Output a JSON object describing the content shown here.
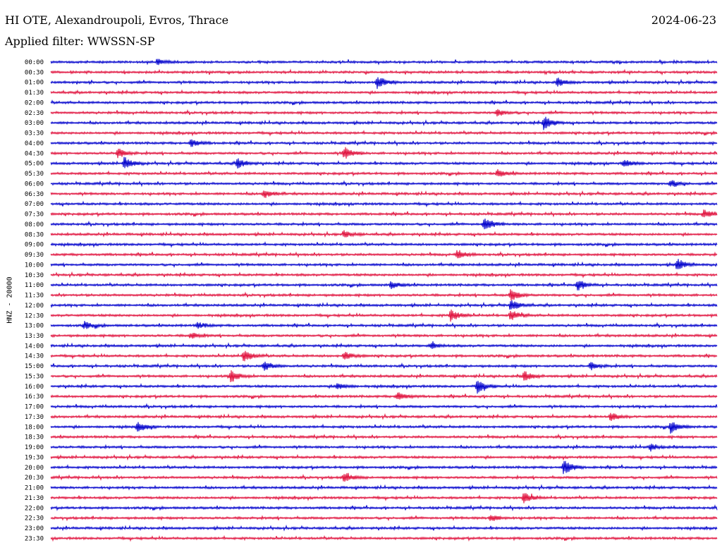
{
  "header": {
    "station": "HI OTE, Alexandroupoli, Evros, Thrace",
    "date": "2024-06-23",
    "filter": "Applied filter: WWSSN-SP"
  },
  "chart_data": {
    "type": "line",
    "chart_kind": "helicorder",
    "ylabel": "HNZ - 20000",
    "row_labels": [
      "00:00",
      "00:30",
      "01:00",
      "01:30",
      "02:00",
      "02:30",
      "03:00",
      "03:30",
      "04:00",
      "04:30",
      "05:00",
      "05:30",
      "06:00",
      "06:30",
      "07:00",
      "07:30",
      "08:00",
      "08:30",
      "09:00",
      "09:30",
      "10:00",
      "10:30",
      "11:00",
      "11:30",
      "12:00",
      "12:30",
      "13:00",
      "13:30",
      "14:00",
      "14:30",
      "15:00",
      "15:30",
      "16:00",
      "16:30",
      "17:00",
      "17:30",
      "18:00",
      "18:30",
      "19:00",
      "19:30",
      "20:00",
      "20:30",
      "21:00",
      "21:30",
      "22:00",
      "22:30",
      "23:00",
      "23:30"
    ],
    "colors": [
      "#0000cc",
      "#e0103c"
    ],
    "events": [
      {
        "row": 0,
        "pos": 0.16,
        "amp": 0.5
      },
      {
        "row": 2,
        "pos": 0.49,
        "amp": 1.0
      },
      {
        "row": 2,
        "pos": 0.76,
        "amp": 0.6
      },
      {
        "row": 5,
        "pos": 0.67,
        "amp": 0.5
      },
      {
        "row": 6,
        "pos": 0.74,
        "amp": 1.1
      },
      {
        "row": 8,
        "pos": 0.21,
        "amp": 0.6
      },
      {
        "row": 9,
        "pos": 0.1,
        "amp": 0.8
      },
      {
        "row": 9,
        "pos": 0.44,
        "amp": 1.0
      },
      {
        "row": 10,
        "pos": 0.11,
        "amp": 1.0
      },
      {
        "row": 10,
        "pos": 0.28,
        "amp": 0.8
      },
      {
        "row": 10,
        "pos": 0.86,
        "amp": 0.6
      },
      {
        "row": 11,
        "pos": 0.67,
        "amp": 0.6
      },
      {
        "row": 12,
        "pos": 0.93,
        "amp": 0.6
      },
      {
        "row": 13,
        "pos": 0.32,
        "amp": 0.7
      },
      {
        "row": 15,
        "pos": 0.98,
        "amp": 0.7
      },
      {
        "row": 16,
        "pos": 0.65,
        "amp": 1.2
      },
      {
        "row": 17,
        "pos": 0.44,
        "amp": 0.5
      },
      {
        "row": 19,
        "pos": 0.61,
        "amp": 0.7
      },
      {
        "row": 20,
        "pos": 0.94,
        "amp": 0.9
      },
      {
        "row": 22,
        "pos": 0.79,
        "amp": 0.9
      },
      {
        "row": 22,
        "pos": 0.51,
        "amp": 0.6
      },
      {
        "row": 23,
        "pos": 0.69,
        "amp": 1.0
      },
      {
        "row": 24,
        "pos": 0.69,
        "amp": 0.9
      },
      {
        "row": 25,
        "pos": 0.6,
        "amp": 1.0
      },
      {
        "row": 25,
        "pos": 0.69,
        "amp": 0.9
      },
      {
        "row": 26,
        "pos": 0.05,
        "amp": 0.6
      },
      {
        "row": 26,
        "pos": 0.22,
        "amp": 0.5
      },
      {
        "row": 27,
        "pos": 0.21,
        "amp": 0.5
      },
      {
        "row": 28,
        "pos": 0.57,
        "amp": 0.5
      },
      {
        "row": 29,
        "pos": 0.29,
        "amp": 1.0
      },
      {
        "row": 29,
        "pos": 0.44,
        "amp": 0.7
      },
      {
        "row": 30,
        "pos": 0.32,
        "amp": 0.8
      },
      {
        "row": 30,
        "pos": 0.81,
        "amp": 0.6
      },
      {
        "row": 31,
        "pos": 0.27,
        "amp": 1.0
      },
      {
        "row": 31,
        "pos": 0.71,
        "amp": 0.8
      },
      {
        "row": 32,
        "pos": 0.64,
        "amp": 1.1
      },
      {
        "row": 32,
        "pos": 0.43,
        "amp": 0.5
      },
      {
        "row": 33,
        "pos": 0.52,
        "amp": 0.7
      },
      {
        "row": 35,
        "pos": 0.84,
        "amp": 0.6
      },
      {
        "row": 36,
        "pos": 0.13,
        "amp": 0.8
      },
      {
        "row": 36,
        "pos": 0.93,
        "amp": 1.0
      },
      {
        "row": 38,
        "pos": 0.9,
        "amp": 0.5
      },
      {
        "row": 40,
        "pos": 0.77,
        "amp": 1.2
      },
      {
        "row": 41,
        "pos": 0.44,
        "amp": 0.8
      },
      {
        "row": 43,
        "pos": 0.71,
        "amp": 0.9
      },
      {
        "row": 45,
        "pos": 0.66,
        "amp": 0.6
      }
    ]
  }
}
